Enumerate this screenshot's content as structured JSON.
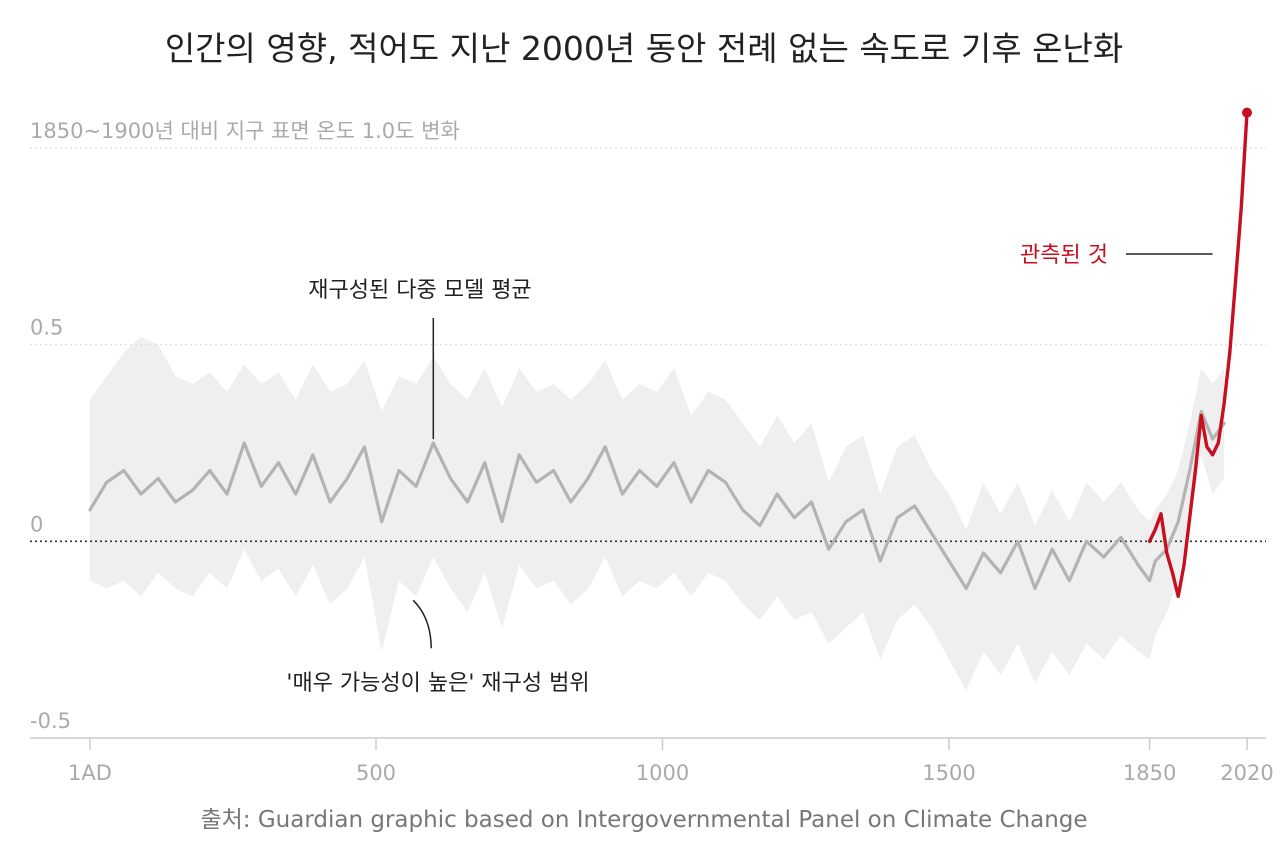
{
  "title": "인간의 영향, 적어도 지난 2000년 동안 전례 없는 속도로 기후 온난화",
  "source": "출처: Guardian graphic based on Intergovernmental Panel on Climate Change",
  "colors": {
    "background": "#ffffff",
    "band": "#efefef",
    "reconstruction": "#b3b3b3",
    "observed": "#c70f1f",
    "zero_line": "#333333",
    "grid": "#dcdcdc",
    "tick_text": "#aaaaaa",
    "annotation": "#222222"
  },
  "chart_data": {
    "type": "line",
    "title": "인간의 영향, 적어도 지난 2000년 동안 전례 없는 속도로 기후 온난화",
    "ylabel": "1850~1900년 대비 지구 표면 온도 1.0도 변화",
    "xlim": [
      1,
      2020
    ],
    "ylim": [
      -0.5,
      1.0
    ],
    "x_ticks": [
      {
        "value": 1,
        "label": "1AD"
      },
      {
        "value": 500,
        "label": "500"
      },
      {
        "value": 1000,
        "label": "1000"
      },
      {
        "value": 1500,
        "label": "1500"
      },
      {
        "value": 1850,
        "label": "1850"
      },
      {
        "value": 2020,
        "label": "2020"
      }
    ],
    "y_ticks": [
      {
        "value": 1.0,
        "label": "1850~1900년 대비 지구 표면 온도 1.0도 변화"
      },
      {
        "value": 0.5,
        "label": "0.5"
      },
      {
        "value": 0,
        "label": "0"
      },
      {
        "value": -0.5,
        "label": "-0.5"
      }
    ],
    "grid": true,
    "series": [
      {
        "name": "재구성된 다중 모델 평균",
        "x": [
          1,
          30,
          60,
          90,
          120,
          150,
          180,
          210,
          240,
          270,
          300,
          330,
          360,
          390,
          420,
          450,
          480,
          510,
          540,
          570,
          600,
          630,
          660,
          690,
          720,
          750,
          780,
          810,
          840,
          870,
          900,
          930,
          960,
          990,
          1020,
          1050,
          1080,
          1110,
          1140,
          1170,
          1200,
          1230,
          1260,
          1290,
          1320,
          1350,
          1380,
          1410,
          1440,
          1470,
          1500,
          1530,
          1560,
          1590,
          1620,
          1650,
          1680,
          1710,
          1740,
          1770,
          1800,
          1830,
          1850,
          1860,
          1880,
          1900,
          1920,
          1940,
          1960,
          1980
        ],
        "values": [
          0.08,
          0.15,
          0.18,
          0.12,
          0.16,
          0.1,
          0.13,
          0.18,
          0.12,
          0.25,
          0.14,
          0.2,
          0.12,
          0.22,
          0.1,
          0.16,
          0.24,
          0.05,
          0.18,
          0.14,
          0.25,
          0.16,
          0.1,
          0.2,
          0.05,
          0.22,
          0.15,
          0.18,
          0.1,
          0.16,
          0.24,
          0.12,
          0.18,
          0.14,
          0.2,
          0.1,
          0.18,
          0.15,
          0.08,
          0.04,
          0.12,
          0.06,
          0.1,
          -0.02,
          0.05,
          0.08,
          -0.05,
          0.06,
          0.09,
          0.02,
          -0.05,
          -0.12,
          -0.03,
          -0.08,
          0.0,
          -0.12,
          -0.02,
          -0.1,
          0.0,
          -0.04,
          0.01,
          -0.06,
          -0.1,
          -0.05,
          -0.02,
          0.05,
          0.18,
          0.33,
          0.26,
          0.3
        ]
      },
      {
        "name": "관측된 것",
        "x": [
          1850,
          1860,
          1870,
          1880,
          1890,
          1900,
          1910,
          1920,
          1930,
          1940,
          1950,
          1960,
          1970,
          1980,
          1990,
          2000,
          2010,
          2020
        ],
        "values": [
          0.0,
          0.03,
          0.07,
          -0.03,
          -0.08,
          -0.14,
          -0.06,
          0.06,
          0.18,
          0.32,
          0.24,
          0.22,
          0.25,
          0.35,
          0.48,
          0.66,
          0.85,
          1.09
        ]
      },
      {
        "name": "'매우 가능성이 높은' 재구성 범위",
        "x": [
          1,
          30,
          60,
          90,
          120,
          150,
          180,
          210,
          240,
          270,
          300,
          330,
          360,
          390,
          420,
          450,
          480,
          510,
          540,
          570,
          600,
          630,
          660,
          690,
          720,
          750,
          780,
          810,
          840,
          870,
          900,
          930,
          960,
          990,
          1020,
          1050,
          1080,
          1110,
          1140,
          1170,
          1200,
          1230,
          1260,
          1290,
          1320,
          1350,
          1380,
          1410,
          1440,
          1470,
          1500,
          1530,
          1560,
          1590,
          1620,
          1650,
          1680,
          1710,
          1740,
          1770,
          1800,
          1830,
          1850,
          1860,
          1880,
          1900,
          1920,
          1940,
          1960,
          1980
        ],
        "upper": [
          0.36,
          0.42,
          0.48,
          0.52,
          0.5,
          0.42,
          0.4,
          0.43,
          0.38,
          0.45,
          0.4,
          0.43,
          0.36,
          0.45,
          0.38,
          0.4,
          0.46,
          0.33,
          0.42,
          0.4,
          0.47,
          0.4,
          0.36,
          0.44,
          0.34,
          0.44,
          0.38,
          0.4,
          0.36,
          0.4,
          0.46,
          0.36,
          0.4,
          0.38,
          0.44,
          0.32,
          0.38,
          0.36,
          0.3,
          0.24,
          0.32,
          0.25,
          0.3,
          0.15,
          0.24,
          0.27,
          0.12,
          0.24,
          0.27,
          0.18,
          0.12,
          0.03,
          0.15,
          0.07,
          0.15,
          0.04,
          0.13,
          0.05,
          0.15,
          0.1,
          0.15,
          0.08,
          0.05,
          0.08,
          0.12,
          0.18,
          0.3,
          0.44,
          0.4,
          0.44
        ],
        "lower": [
          -0.1,
          -0.12,
          -0.1,
          -0.14,
          -0.08,
          -0.12,
          -0.14,
          -0.08,
          -0.12,
          -0.02,
          -0.1,
          -0.07,
          -0.14,
          -0.06,
          -0.16,
          -0.12,
          -0.04,
          -0.28,
          -0.1,
          -0.14,
          -0.04,
          -0.12,
          -0.18,
          -0.08,
          -0.22,
          -0.06,
          -0.12,
          -0.1,
          -0.16,
          -0.12,
          -0.04,
          -0.14,
          -0.1,
          -0.12,
          -0.08,
          -0.14,
          -0.08,
          -0.1,
          -0.16,
          -0.2,
          -0.14,
          -0.2,
          -0.18,
          -0.26,
          -0.22,
          -0.18,
          -0.3,
          -0.2,
          -0.16,
          -0.22,
          -0.3,
          -0.38,
          -0.28,
          -0.34,
          -0.26,
          -0.36,
          -0.28,
          -0.34,
          -0.26,
          -0.3,
          -0.24,
          -0.28,
          -0.3,
          -0.24,
          -0.18,
          -0.1,
          0.05,
          0.22,
          0.12,
          0.16
        ]
      }
    ],
    "annotations": [
      {
        "text": "재구성된 다중 모델 평균",
        "x": 600,
        "y": 0.26
      },
      {
        "text": "'매우 가능성이 높은' 재구성 범위",
        "x": 565,
        "y": -0.15
      },
      {
        "text": "관측된 것",
        "x": 1960,
        "y": 0.73
      }
    ]
  }
}
